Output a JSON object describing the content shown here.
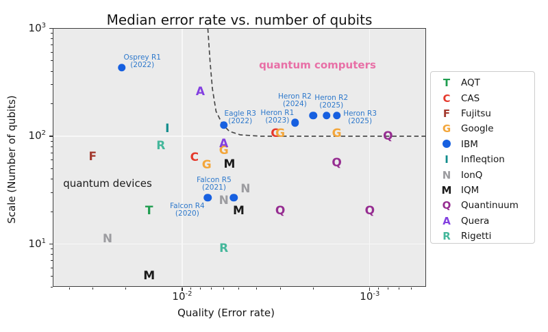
{
  "figure": {
    "title": "Median error rate vs. number of qubits",
    "xlabel": "Quality (Error rate)",
    "ylabel": "Scale (Number of qubits)"
  },
  "colors": {
    "aqt": "#1f9d4f",
    "cas": "#e5392c",
    "fujitsu": "#a3392e",
    "google": "#f3a63b",
    "ibm": "#1760e0",
    "ibm_label": "#2d78cb",
    "infleqtion": "#108c8c",
    "ionq": "#9c9ca0",
    "iqm": "#1a1a1a",
    "quantinuum": "#962d91",
    "quera": "#8340e0",
    "rigetti": "#44b79b",
    "pink": "#e86fa6",
    "text_dark": "#1a1a1a",
    "boundary": "#484848"
  },
  "legend": {
    "entries": [
      {
        "marker": "T",
        "color_key": "aqt",
        "label": "AQT"
      },
      {
        "marker": "C",
        "color_key": "cas",
        "label": "CAS"
      },
      {
        "marker": "F",
        "color_key": "fujitsu",
        "label": "Fujitsu"
      },
      {
        "marker": "G",
        "color_key": "google",
        "label": "Google"
      },
      {
        "marker": "dot",
        "color_key": "ibm",
        "label": "IBM"
      },
      {
        "marker": "I",
        "color_key": "infleqtion",
        "label": "Infleqtion"
      },
      {
        "marker": "N",
        "color_key": "ionq",
        "label": "IonQ"
      },
      {
        "marker": "M",
        "color_key": "iqm",
        "label": "IQM"
      },
      {
        "marker": "Q",
        "color_key": "quantinuum",
        "label": "Quantinuum"
      },
      {
        "marker": "A",
        "color_key": "quera",
        "label": "Quera"
      },
      {
        "marker": "R",
        "color_key": "rigetti",
        "label": "Rigetti"
      }
    ]
  },
  "chart_data": {
    "type": "scatter",
    "title": "Median error rate vs. number of qubits",
    "xlabel": "Quality (Error rate)",
    "ylabel": "Scale (Number of qubits)",
    "x_axis": {
      "scale": "log",
      "inverted": true,
      "range_log10": [
        -1.31,
        -3.3
      ],
      "major_ticks_log10": [
        -2,
        -3
      ]
    },
    "y_axis": {
      "scale": "log",
      "range_log10": [
        0.6,
        3.0
      ],
      "major_ticks_log10": [
        1,
        2,
        3
      ]
    },
    "grid": true,
    "legend_position": "outside-right",
    "series": [
      {
        "vendor": "AQT",
        "marker": "T",
        "color_key": "aqt",
        "points": [
          {
            "error": 0.015,
            "qubits": 20
          }
        ]
      },
      {
        "vendor": "CAS",
        "marker": "C",
        "color_key": "cas",
        "points": [
          {
            "error": 0.0086,
            "qubits": 63
          },
          {
            "error": 0.0032,
            "qubits": 105
          }
        ]
      },
      {
        "vendor": "Fujitsu",
        "marker": "F",
        "color_key": "fujitsu",
        "points": [
          {
            "error": 0.03,
            "qubits": 64
          }
        ]
      },
      {
        "vendor": "Google",
        "marker": "G",
        "color_key": "google",
        "points": [
          {
            "error": 0.0074,
            "qubits": 53
          },
          {
            "error": 0.006,
            "qubits": 72
          },
          {
            "error": 0.003,
            "qubits": 105
          },
          {
            "error": 0.0015,
            "qubits": 105
          }
        ]
      },
      {
        "vendor": "IBM",
        "marker": "dot",
        "color_key": "ibm",
        "points": [
          {
            "error": 0.0073,
            "qubits": 27,
            "name": "Falcon R4",
            "year": "(2020)",
            "label_dx": -30,
            "label_dy": 18
          },
          {
            "error": 0.0053,
            "qubits": 27,
            "name": "Falcon R5",
            "year": "(2021)",
            "label_dx": -29,
            "label_dy": -20
          },
          {
            "error": 0.021,
            "qubits": 433,
            "name": "Osprey R1",
            "year": "(2022)",
            "label_dx": 30,
            "label_dy": -9
          },
          {
            "error": 0.006,
            "qubits": 127,
            "name": "Eagle R3",
            "year": "(2022)",
            "label_dx": 24,
            "label_dy": -11
          },
          {
            "error": 0.0025,
            "qubits": 133,
            "name": "Heron R1",
            "year": "(2023)",
            "label_dx": -26,
            "label_dy": -8
          },
          {
            "error": 0.002,
            "qubits": 156,
            "name": "Heron R2",
            "year": "(2024)",
            "label_dx": -27,
            "label_dy": -22
          },
          {
            "error": 0.0017,
            "qubits": 156,
            "name": "Heron R2",
            "year": "(2025)",
            "label_dx": 7,
            "label_dy": -20
          },
          {
            "error": 0.0015,
            "qubits": 156,
            "name": "Heron R3",
            "year": "(2025)",
            "label_dx": 34,
            "label_dy": 3
          }
        ]
      },
      {
        "vendor": "Infleqtion",
        "marker": "I",
        "color_key": "infleqtion",
        "points": [
          {
            "error": 0.012,
            "qubits": 115
          }
        ]
      },
      {
        "vendor": "IonQ",
        "marker": "N",
        "color_key": "ionq",
        "points": [
          {
            "error": 0.025,
            "qubits": 11
          },
          {
            "error": 0.006,
            "qubits": 25
          },
          {
            "error": 0.0046,
            "qubits": 32
          }
        ]
      },
      {
        "vendor": "IQM",
        "marker": "M",
        "color_key": "iqm",
        "points": [
          {
            "error": 0.015,
            "qubits": 5
          },
          {
            "error": 0.0056,
            "qubits": 54
          },
          {
            "error": 0.005,
            "qubits": 20
          }
        ]
      },
      {
        "vendor": "Quantinuum",
        "marker": "Q",
        "color_key": "quantinuum",
        "points": [
          {
            "error": 0.003,
            "qubits": 20
          },
          {
            "error": 0.001,
            "qubits": 20
          },
          {
            "error": 0.0015,
            "qubits": 56
          },
          {
            "error": 0.0008,
            "qubits": 98
          }
        ]
      },
      {
        "vendor": "Quera",
        "marker": "A",
        "color_key": "quera",
        "points": [
          {
            "error": 0.008,
            "qubits": 256
          },
          {
            "error": 0.006,
            "qubits": 84
          }
        ]
      },
      {
        "vendor": "Rigetti",
        "marker": "R",
        "color_key": "rigetti",
        "points": [
          {
            "error": 0.013,
            "qubits": 80
          },
          {
            "error": 0.006,
            "qubits": 9
          }
        ]
      }
    ],
    "boundary_curve": {
      "style": "dashed",
      "color_key": "boundary",
      "points": [
        {
          "error": 0.0073,
          "qubits": 1000
        },
        {
          "error": 0.0071,
          "qubits": 490
        },
        {
          "error": 0.0069,
          "qubits": 275
        },
        {
          "error": 0.0066,
          "qubits": 170
        },
        {
          "error": 0.0061,
          "qubits": 129
        },
        {
          "error": 0.0056,
          "qubits": 111
        },
        {
          "error": 0.0049,
          "qubits": 103
        },
        {
          "error": 0.0038,
          "qubits": 100
        },
        {
          "error": 0.0005,
          "qubits": 100
        }
      ]
    },
    "annotations": [
      {
        "text": "quantum devices",
        "color_key": "text_dark",
        "error": 0.025,
        "qubits": 36.5
      },
      {
        "text": "quantum computers",
        "color_key": "pink",
        "error": 0.0019,
        "qubits": 460
      }
    ]
  }
}
